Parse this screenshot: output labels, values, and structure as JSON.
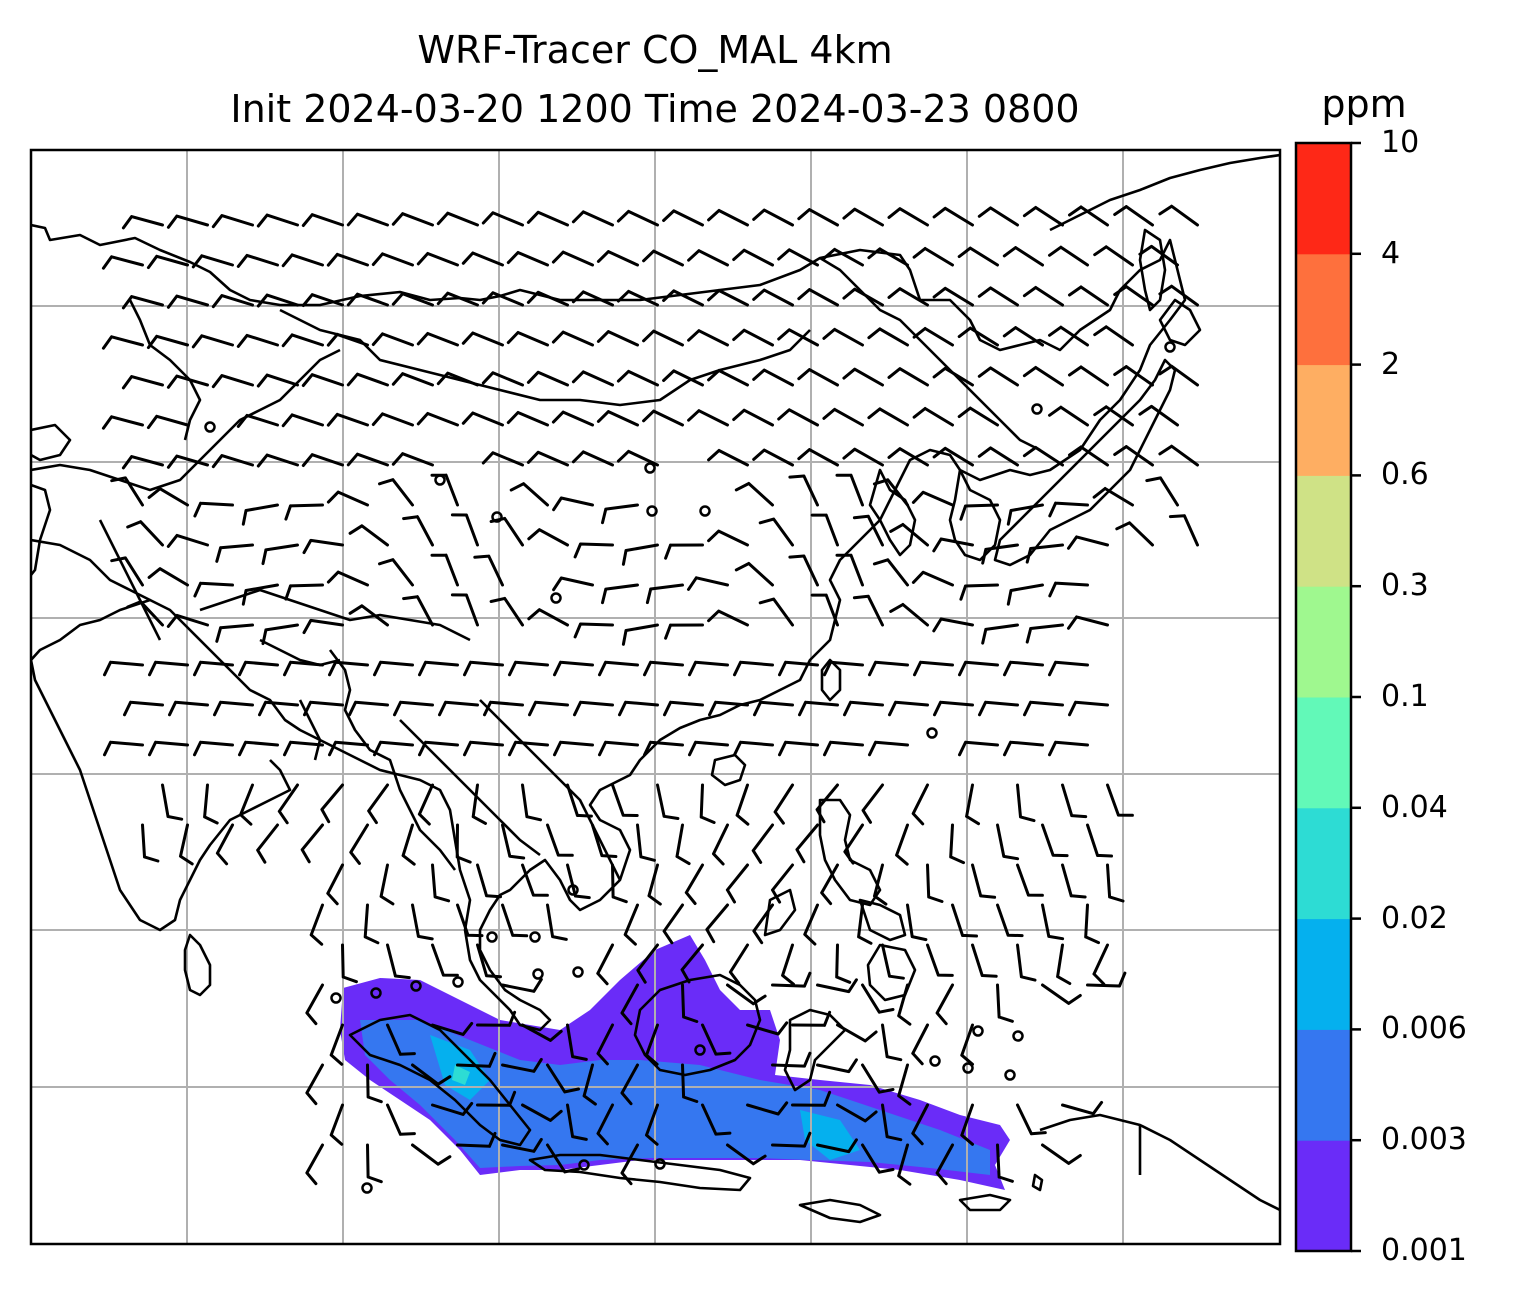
{
  "title": {
    "line1": "WRF-Tracer CO_MAL 4km",
    "line2": "Init 2024-03-20 1200 Time 2024-03-23 0800"
  },
  "colorbar": {
    "unit": "ppm",
    "ticks": [
      "0.001",
      "0.003",
      "0.006",
      "0.02",
      "0.04",
      "0.1",
      "0.3",
      "0.6",
      "2",
      "4",
      "10"
    ],
    "colors": [
      "#6a2cf8",
      "#3577f0",
      "#05b0ee",
      "#2ddcd4",
      "#62f9b8",
      "#9ff88f",
      "#cfe286",
      "#feae62",
      "#fe703d",
      "#fe2817"
    ]
  },
  "plume": {
    "colors": [
      "#6a2cf8",
      "#3577f0",
      "#05b0ee",
      "#2ddcd4"
    ]
  }
}
